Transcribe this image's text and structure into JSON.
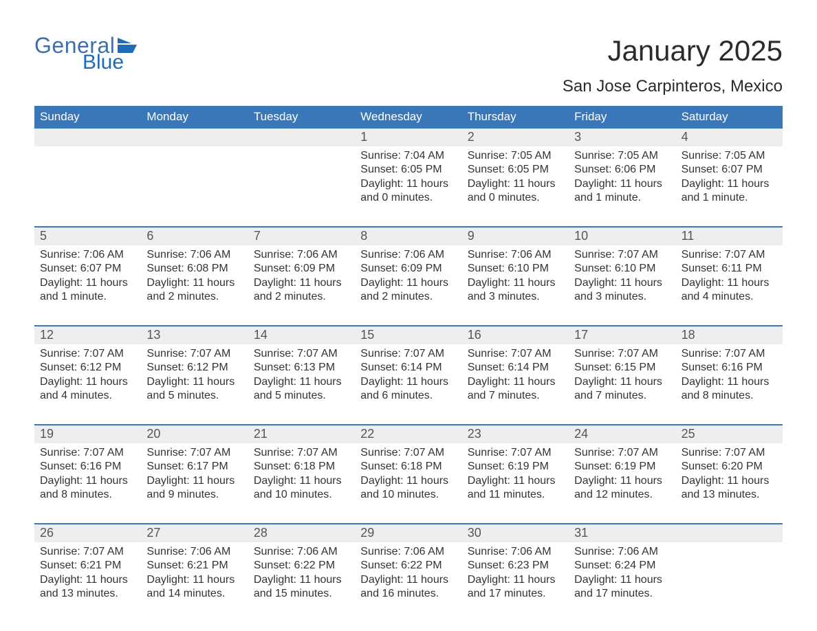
{
  "logo": {
    "general": "General",
    "blue": "Blue",
    "icon_color": "#1f6bb7"
  },
  "title": "January 2025",
  "subtitle": "San Jose Carpinteros, Mexico",
  "colors": {
    "header_bg": "#3a77b8",
    "header_text": "#ffffff",
    "daynum_bg": "#eeeeee",
    "daynum_text": "#555555",
    "body_text": "#333333",
    "rule": "#3a77b8",
    "page_bg": "#ffffff"
  },
  "day_labels": [
    "Sunday",
    "Monday",
    "Tuesday",
    "Wednesday",
    "Thursday",
    "Friday",
    "Saturday"
  ],
  "weeks": [
    {
      "numbers": [
        "",
        "",
        "",
        "1",
        "2",
        "3",
        "4"
      ],
      "cells": [
        {
          "lines": []
        },
        {
          "lines": []
        },
        {
          "lines": []
        },
        {
          "lines": [
            "Sunrise: 7:04 AM",
            "Sunset: 6:05 PM",
            "Daylight: 11 hours",
            "and 0 minutes."
          ]
        },
        {
          "lines": [
            "Sunrise: 7:05 AM",
            "Sunset: 6:05 PM",
            "Daylight: 11 hours",
            "and 0 minutes."
          ]
        },
        {
          "lines": [
            "Sunrise: 7:05 AM",
            "Sunset: 6:06 PM",
            "Daylight: 11 hours",
            "and 1 minute."
          ]
        },
        {
          "lines": [
            "Sunrise: 7:05 AM",
            "Sunset: 6:07 PM",
            "Daylight: 11 hours",
            "and 1 minute."
          ]
        }
      ]
    },
    {
      "numbers": [
        "5",
        "6",
        "7",
        "8",
        "9",
        "10",
        "11"
      ],
      "cells": [
        {
          "lines": [
            "Sunrise: 7:06 AM",
            "Sunset: 6:07 PM",
            "Daylight: 11 hours",
            "and 1 minute."
          ]
        },
        {
          "lines": [
            "Sunrise: 7:06 AM",
            "Sunset: 6:08 PM",
            "Daylight: 11 hours",
            "and 2 minutes."
          ]
        },
        {
          "lines": [
            "Sunrise: 7:06 AM",
            "Sunset: 6:09 PM",
            "Daylight: 11 hours",
            "and 2 minutes."
          ]
        },
        {
          "lines": [
            "Sunrise: 7:06 AM",
            "Sunset: 6:09 PM",
            "Daylight: 11 hours",
            "and 2 minutes."
          ]
        },
        {
          "lines": [
            "Sunrise: 7:06 AM",
            "Sunset: 6:10 PM",
            "Daylight: 11 hours",
            "and 3 minutes."
          ]
        },
        {
          "lines": [
            "Sunrise: 7:07 AM",
            "Sunset: 6:10 PM",
            "Daylight: 11 hours",
            "and 3 minutes."
          ]
        },
        {
          "lines": [
            "Sunrise: 7:07 AM",
            "Sunset: 6:11 PM",
            "Daylight: 11 hours",
            "and 4 minutes."
          ]
        }
      ]
    },
    {
      "numbers": [
        "12",
        "13",
        "14",
        "15",
        "16",
        "17",
        "18"
      ],
      "cells": [
        {
          "lines": [
            "Sunrise: 7:07 AM",
            "Sunset: 6:12 PM",
            "Daylight: 11 hours",
            "and 4 minutes."
          ]
        },
        {
          "lines": [
            "Sunrise: 7:07 AM",
            "Sunset: 6:12 PM",
            "Daylight: 11 hours",
            "and 5 minutes."
          ]
        },
        {
          "lines": [
            "Sunrise: 7:07 AM",
            "Sunset: 6:13 PM",
            "Daylight: 11 hours",
            "and 5 minutes."
          ]
        },
        {
          "lines": [
            "Sunrise: 7:07 AM",
            "Sunset: 6:14 PM",
            "Daylight: 11 hours",
            "and 6 minutes."
          ]
        },
        {
          "lines": [
            "Sunrise: 7:07 AM",
            "Sunset: 6:14 PM",
            "Daylight: 11 hours",
            "and 7 minutes."
          ]
        },
        {
          "lines": [
            "Sunrise: 7:07 AM",
            "Sunset: 6:15 PM",
            "Daylight: 11 hours",
            "and 7 minutes."
          ]
        },
        {
          "lines": [
            "Sunrise: 7:07 AM",
            "Sunset: 6:16 PM",
            "Daylight: 11 hours",
            "and 8 minutes."
          ]
        }
      ]
    },
    {
      "numbers": [
        "19",
        "20",
        "21",
        "22",
        "23",
        "24",
        "25"
      ],
      "cells": [
        {
          "lines": [
            "Sunrise: 7:07 AM",
            "Sunset: 6:16 PM",
            "Daylight: 11 hours",
            "and 8 minutes."
          ]
        },
        {
          "lines": [
            "Sunrise: 7:07 AM",
            "Sunset: 6:17 PM",
            "Daylight: 11 hours",
            "and 9 minutes."
          ]
        },
        {
          "lines": [
            "Sunrise: 7:07 AM",
            "Sunset: 6:18 PM",
            "Daylight: 11 hours",
            "and 10 minutes."
          ]
        },
        {
          "lines": [
            "Sunrise: 7:07 AM",
            "Sunset: 6:18 PM",
            "Daylight: 11 hours",
            "and 10 minutes."
          ]
        },
        {
          "lines": [
            "Sunrise: 7:07 AM",
            "Sunset: 6:19 PM",
            "Daylight: 11 hours",
            "and 11 minutes."
          ]
        },
        {
          "lines": [
            "Sunrise: 7:07 AM",
            "Sunset: 6:19 PM",
            "Daylight: 11 hours",
            "and 12 minutes."
          ]
        },
        {
          "lines": [
            "Sunrise: 7:07 AM",
            "Sunset: 6:20 PM",
            "Daylight: 11 hours",
            "and 13 minutes."
          ]
        }
      ]
    },
    {
      "numbers": [
        "26",
        "27",
        "28",
        "29",
        "30",
        "31",
        ""
      ],
      "cells": [
        {
          "lines": [
            "Sunrise: 7:07 AM",
            "Sunset: 6:21 PM",
            "Daylight: 11 hours",
            "and 13 minutes."
          ]
        },
        {
          "lines": [
            "Sunrise: 7:06 AM",
            "Sunset: 6:21 PM",
            "Daylight: 11 hours",
            "and 14 minutes."
          ]
        },
        {
          "lines": [
            "Sunrise: 7:06 AM",
            "Sunset: 6:22 PM",
            "Daylight: 11 hours",
            "and 15 minutes."
          ]
        },
        {
          "lines": [
            "Sunrise: 7:06 AM",
            "Sunset: 6:22 PM",
            "Daylight: 11 hours",
            "and 16 minutes."
          ]
        },
        {
          "lines": [
            "Sunrise: 7:06 AM",
            "Sunset: 6:23 PM",
            "Daylight: 11 hours",
            "and 17 minutes."
          ]
        },
        {
          "lines": [
            "Sunrise: 7:06 AM",
            "Sunset: 6:24 PM",
            "Daylight: 11 hours",
            "and 17 minutes."
          ]
        },
        {
          "lines": []
        }
      ]
    }
  ]
}
